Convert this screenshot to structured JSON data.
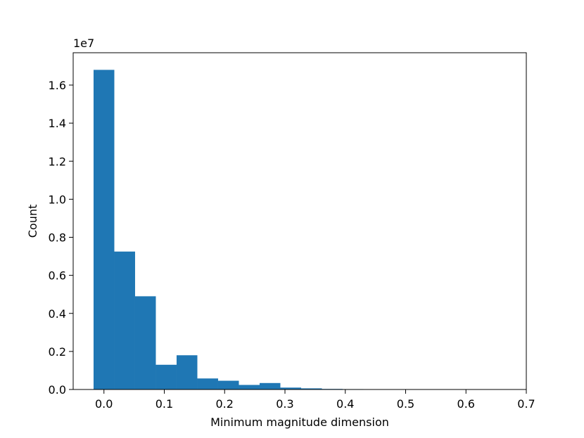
{
  "chart_data": {
    "type": "bar",
    "xlabel": "Minimum magnitude dimension",
    "ylabel": "Count",
    "y_offset_text": "1e7",
    "xlim": [
      -0.051,
      0.7
    ],
    "ylim": [
      0,
      1.77
    ],
    "bar_color": "#1f77b4",
    "grid": false,
    "bin_width": 0.0344,
    "bin_starts": [
      -0.0172,
      0.0172,
      0.0516,
      0.086,
      0.1204,
      0.1548,
      0.1892,
      0.2236,
      0.258,
      0.2924,
      0.3268,
      0.3612,
      0.3956,
      0.43,
      0.4644,
      0.4988,
      0.5332,
      0.5676,
      0.602,
      0.6364
    ],
    "values": [
      1.68,
      0.725,
      0.49,
      0.13,
      0.18,
      0.058,
      0.046,
      0.024,
      0.034,
      0.01,
      0.006,
      0.003,
      0.002,
      0.0015,
      0.001,
      0.0008,
      0.0005,
      0.0004,
      0.0003,
      0.0002
    ],
    "x_ticks": [
      0.0,
      0.1,
      0.2,
      0.3,
      0.4,
      0.5,
      0.6,
      0.7
    ],
    "x_tick_labels": [
      "0.0",
      "0.1",
      "0.2",
      "0.3",
      "0.4",
      "0.5",
      "0.6",
      "0.7"
    ],
    "y_ticks": [
      0.0,
      0.2,
      0.4,
      0.6,
      0.8,
      1.0,
      1.2,
      1.4,
      1.6
    ],
    "y_tick_labels": [
      "0.0",
      "0.2",
      "0.4",
      "0.6",
      "0.8",
      "1.0",
      "1.2",
      "1.4",
      "1.6"
    ]
  }
}
